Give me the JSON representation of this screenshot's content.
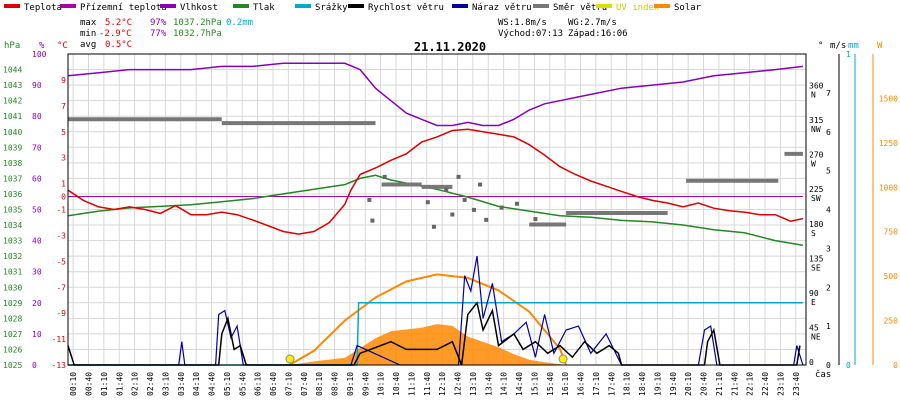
{
  "title": "21.11.2020",
  "legend": [
    {
      "label": "Teplota",
      "color": "#dd0000"
    },
    {
      "label": "Přízemní teplota",
      "color": "#aa00aa"
    },
    {
      "label": "Vlhkost",
      "color": "#8800bb"
    },
    {
      "label": "Tlak",
      "color": "#228822"
    },
    {
      "label": "Srážky",
      "color": "#00aacc"
    },
    {
      "label": "Rychlost větru",
      "color": "#000000"
    },
    {
      "label": "Náraz větru",
      "color": "#0000aa"
    },
    {
      "label": "Směr větru",
      "color": "#777777"
    },
    {
      "label": "UV index",
      "color": "#dddd00"
    },
    {
      "label": "Solar",
      "color": "#ff8800"
    }
  ],
  "stats": {
    "max": {
      "label": "max",
      "temp": "5.2°C",
      "hum": "97%",
      "press": "1037.2hPa",
      "rain": "0.2mm"
    },
    "min": {
      "label": "min",
      "temp": "-2.9°C",
      "hum": "77%",
      "press": "1032.7hPa"
    },
    "avg": {
      "label": "avg",
      "temp": "0.5°C"
    }
  },
  "info": {
    "ws": "WS:1.8m/s",
    "wg": "WG:2.7m/s",
    "sunrise": "Východ:07:13",
    "sunset": "Západ:16:06"
  },
  "axes": {
    "hpa_title": "hPa",
    "pct_title": "%",
    "c_title": "°C",
    "dir_title": "°",
    "ms_title": "m/s",
    "mm_title": "mm",
    "w_title": "W",
    "x_unit": "čas",
    "hpa_ticks": [
      "1044",
      "1043",
      "1042",
      "1041",
      "1040",
      "1039",
      "1038",
      "1037",
      "1036",
      "1035",
      "1034",
      "1033",
      "1032",
      "1031",
      "1030",
      "1029",
      "1028",
      "1027",
      "1026",
      "1025"
    ],
    "pct_ticks": [
      "100",
      "90",
      "80",
      "70",
      "60",
      "50",
      "40",
      "30",
      "20",
      "10",
      "0"
    ],
    "c_ticks": [
      "9",
      "7",
      "5",
      "3",
      "1",
      "-1",
      "-3",
      "-5",
      "-7",
      "-9",
      "-11",
      "-13"
    ],
    "c_mid_tick": "0",
    "dir_ticks": [
      {
        "deg": "360",
        "name": "N"
      },
      {
        "deg": "315",
        "name": "NW"
      },
      {
        "deg": "270",
        "name": "W"
      },
      {
        "deg": "225",
        "name": "SW"
      },
      {
        "deg": "180",
        "name": "S"
      },
      {
        "deg": "135",
        "name": "SE"
      },
      {
        "deg": "90",
        "name": "E"
      },
      {
        "deg": "45",
        "name": "NE"
      },
      {
        "deg": "0",
        "name": ""
      }
    ],
    "ms_ticks": [
      "7",
      "6",
      "5",
      "4",
      "3",
      "2",
      "1",
      "0"
    ],
    "mm_ticks": [
      "1",
      "0"
    ],
    "w_ticks": [
      "1500",
      "1250",
      "1000",
      "750",
      "500",
      "250",
      "0"
    ],
    "time_labels": [
      "00:10",
      "00:40",
      "01:10",
      "01:40",
      "02:10",
      "02:40",
      "03:10",
      "03:40",
      "04:10",
      "04:40",
      "05:10",
      "05:40",
      "06:10",
      "06:40",
      "07:10",
      "07:40",
      "08:10",
      "08:40",
      "09:10",
      "09:40",
      "10:10",
      "10:40",
      "11:10",
      "11:40",
      "12:10",
      "12:40",
      "13:10",
      "13:40",
      "14:10",
      "14:40",
      "15:10",
      "15:40",
      "16:10",
      "16:40",
      "17:10",
      "17:40",
      "18:10",
      "18:40",
      "19:10",
      "19:40",
      "20:10",
      "20:40",
      "21:10",
      "21:40",
      "22:10",
      "22:40",
      "23:10",
      "23:40"
    ]
  },
  "chart_data": {
    "type": "line",
    "x_unit": "hours",
    "series": [
      {
        "name": "Teplota",
        "color": "#dd0000",
        "unit": "°C",
        "points": [
          [
            0,
            0.5
          ],
          [
            0.5,
            -0.3
          ],
          [
            1,
            -0.8
          ],
          [
            1.5,
            -1.0
          ],
          [
            2,
            -0.8
          ],
          [
            2.5,
            -1.0
          ],
          [
            3,
            -1.3
          ],
          [
            3.5,
            -0.7
          ],
          [
            4,
            -1.4
          ],
          [
            4.5,
            -1.4
          ],
          [
            5,
            -1.2
          ],
          [
            5.5,
            -1.4
          ],
          [
            6,
            -1.8
          ],
          [
            7,
            -2.7
          ],
          [
            7.5,
            -2.9
          ],
          [
            8,
            -2.7
          ],
          [
            8.5,
            -2.0
          ],
          [
            9,
            -0.6
          ],
          [
            9.2,
            0.5
          ],
          [
            9.5,
            1.7
          ],
          [
            10,
            2.2
          ],
          [
            10.5,
            2.8
          ],
          [
            11,
            3.3
          ],
          [
            11.5,
            4.2
          ],
          [
            12,
            4.6
          ],
          [
            12.5,
            5.1
          ],
          [
            13,
            5.2
          ],
          [
            13.5,
            5.0
          ],
          [
            14,
            4.8
          ],
          [
            14.5,
            4.6
          ],
          [
            15,
            4.0
          ],
          [
            15.5,
            3.2
          ],
          [
            16,
            2.3
          ],
          [
            16.5,
            1.7
          ],
          [
            17,
            1.2
          ],
          [
            17.5,
            0.8
          ],
          [
            18,
            0.4
          ],
          [
            18.5,
            0.0
          ],
          [
            19,
            -0.3
          ],
          [
            19.5,
            -0.5
          ],
          [
            20,
            -0.8
          ],
          [
            20.5,
            -0.5
          ],
          [
            21,
            -0.9
          ],
          [
            21.5,
            -1.1
          ],
          [
            22,
            -1.2
          ],
          [
            22.5,
            -1.4
          ],
          [
            23,
            -1.4
          ],
          [
            23.5,
            -1.9
          ],
          [
            23.9,
            -1.7
          ]
        ]
      },
      {
        "name": "Vlhkost",
        "color": "#8800bb",
        "unit": "%",
        "points": [
          [
            0,
            93
          ],
          [
            1,
            94
          ],
          [
            2,
            95
          ],
          [
            3,
            95
          ],
          [
            4,
            95
          ],
          [
            5,
            96
          ],
          [
            6,
            96
          ],
          [
            7,
            97
          ],
          [
            8,
            97
          ],
          [
            9,
            97
          ],
          [
            9.5,
            95
          ],
          [
            10,
            89
          ],
          [
            10.5,
            85
          ],
          [
            11,
            81
          ],
          [
            11.5,
            79
          ],
          [
            12,
            77
          ],
          [
            12.5,
            77
          ],
          [
            13,
            78
          ],
          [
            13.5,
            77
          ],
          [
            14,
            77
          ],
          [
            14.5,
            79
          ],
          [
            15,
            82
          ],
          [
            15.5,
            84
          ],
          [
            16,
            85
          ],
          [
            16.5,
            86
          ],
          [
            17,
            87
          ],
          [
            18,
            89
          ],
          [
            19,
            90
          ],
          [
            20,
            91
          ],
          [
            21,
            93
          ],
          [
            22,
            94
          ],
          [
            23,
            95
          ],
          [
            23.9,
            96
          ]
        ]
      },
      {
        "name": "Tlak",
        "color": "#228822",
        "unit": "hPa",
        "points": [
          [
            0,
            1034.6
          ],
          [
            1,
            1034.9
          ],
          [
            2,
            1035.1
          ],
          [
            3,
            1035.2
          ],
          [
            4,
            1035.3
          ],
          [
            5,
            1035.5
          ],
          [
            6,
            1035.7
          ],
          [
            7,
            1036.0
          ],
          [
            8,
            1036.3
          ],
          [
            9,
            1036.6
          ],
          [
            9.5,
            1037.0
          ],
          [
            10,
            1037.2
          ],
          [
            10.5,
            1036.9
          ],
          [
            11,
            1036.7
          ],
          [
            12,
            1036.3
          ],
          [
            13,
            1035.8
          ],
          [
            14,
            1035.2
          ],
          [
            15,
            1034.9
          ],
          [
            16,
            1034.6
          ],
          [
            17,
            1034.5
          ],
          [
            18,
            1034.3
          ],
          [
            19,
            1034.2
          ],
          [
            20,
            1034.0
          ],
          [
            21,
            1033.7
          ],
          [
            22,
            1033.5
          ],
          [
            23,
            1033.0
          ],
          [
            23.9,
            1032.7
          ]
        ]
      },
      {
        "name": "Přízemní teplota",
        "color": "#aa00aa",
        "unit": "°C",
        "points": [
          [
            0,
            0
          ],
          [
            23.9,
            0
          ]
        ]
      },
      {
        "name": "Směr větru",
        "color": "#777777",
        "unit": "°",
        "segments": [
          [
            0,
            5,
            320
          ],
          [
            5,
            10,
            315
          ],
          [
            10.2,
            11.5,
            235
          ],
          [
            11.5,
            12.5,
            232
          ],
          [
            15,
            16.2,
            183
          ],
          [
            16.2,
            19.5,
            198
          ],
          [
            20.1,
            23.1,
            240
          ],
          [
            23.3,
            23.9,
            275
          ]
        ],
        "scatter": [
          [
            9.8,
            215
          ],
          [
            9.9,
            188
          ],
          [
            10.3,
            245
          ],
          [
            11.7,
            212
          ],
          [
            12.3,
            228
          ],
          [
            12.5,
            196
          ],
          [
            12.9,
            215
          ],
          [
            13.2,
            202
          ],
          [
            13.6,
            189
          ],
          [
            14.1,
            205
          ],
          [
            14.6,
            210
          ],
          [
            15.2,
            190
          ],
          [
            11.9,
            180
          ],
          [
            12.7,
            245
          ],
          [
            13.4,
            235
          ]
        ]
      },
      {
        "name": "Rychlost větru",
        "color": "#000000",
        "unit": "m/s",
        "points": [
          [
            0,
            0.5
          ],
          [
            0.2,
            0
          ],
          [
            4.9,
            0
          ],
          [
            5,
            0.8
          ],
          [
            5.2,
            1.2
          ],
          [
            5.4,
            0.4
          ],
          [
            5.6,
            0.5
          ],
          [
            5.8,
            0
          ],
          [
            9.3,
            0
          ],
          [
            9.5,
            0.3
          ],
          [
            10.5,
            0.6
          ],
          [
            11,
            0.4
          ],
          [
            12,
            0.4
          ],
          [
            12.5,
            0.6
          ],
          [
            12.8,
            0
          ],
          [
            13,
            1.3
          ],
          [
            13.3,
            1.6
          ],
          [
            13.5,
            0.9
          ],
          [
            13.8,
            1.4
          ],
          [
            14,
            0.5
          ],
          [
            14.5,
            0.8
          ],
          [
            14.8,
            0.4
          ],
          [
            15.2,
            0.6
          ],
          [
            15.6,
            0.3
          ],
          [
            16,
            0.5
          ],
          [
            16.4,
            0.2
          ],
          [
            16.8,
            0.6
          ],
          [
            17.2,
            0.3
          ],
          [
            17.6,
            0.5
          ],
          [
            17.9,
            0.3
          ],
          [
            18,
            0
          ],
          [
            20.7,
            0
          ],
          [
            20.8,
            0.6
          ],
          [
            21,
            0.9
          ],
          [
            21.2,
            0
          ],
          [
            23.7,
            0
          ],
          [
            23.8,
            0.5
          ]
        ]
      },
      {
        "name": "Náraz větru",
        "color": "#0000aa",
        "unit": "m/s",
        "points": [
          [
            0,
            0
          ],
          [
            3.6,
            0
          ],
          [
            3.7,
            0.6
          ],
          [
            3.8,
            0
          ],
          [
            4.8,
            0
          ],
          [
            4.9,
            1.3
          ],
          [
            5.1,
            1.4
          ],
          [
            5.3,
            0.7
          ],
          [
            5.5,
            1.0
          ],
          [
            5.7,
            0
          ],
          [
            9.2,
            0
          ],
          [
            9.4,
            0.5
          ],
          [
            10.8,
            0
          ],
          [
            12.7,
            0
          ],
          [
            12.9,
            2.3
          ],
          [
            13.1,
            1.9
          ],
          [
            13.3,
            2.8
          ],
          [
            13.5,
            1.2
          ],
          [
            13.8,
            2.1
          ],
          [
            14.1,
            0.6
          ],
          [
            14.5,
            0.8
          ],
          [
            14.9,
            1.1
          ],
          [
            15.2,
            0.2
          ],
          [
            15.5,
            1.3
          ],
          [
            15.8,
            0.3
          ],
          [
            16.2,
            0.9
          ],
          [
            16.6,
            1.0
          ],
          [
            17,
            0.3
          ],
          [
            17.5,
            0.8
          ],
          [
            18,
            0
          ],
          [
            20.5,
            0
          ],
          [
            20.7,
            0.9
          ],
          [
            20.9,
            1.0
          ],
          [
            21.1,
            0
          ],
          [
            23.6,
            0
          ],
          [
            23.7,
            0.5
          ],
          [
            23.9,
            0
          ]
        ]
      },
      {
        "name": "Srážky",
        "color": "#00aacc",
        "unit": "mm",
        "points": [
          [
            0,
            0
          ],
          [
            9.4,
            0
          ],
          [
            9.45,
            0.2
          ],
          [
            23.9,
            0.2
          ]
        ]
      },
      {
        "name": "Solar",
        "color": "#ff8800",
        "unit": "W",
        "curve": [
          [
            7.2,
            0
          ],
          [
            8,
            80
          ],
          [
            9,
            250
          ],
          [
            10,
            380
          ],
          [
            11,
            470
          ],
          [
            12,
            510
          ],
          [
            13,
            490
          ],
          [
            14,
            420
          ],
          [
            15,
            300
          ],
          [
            16,
            90
          ],
          [
            16.2,
            0
          ]
        ],
        "area": [
          [
            7.2,
            0
          ],
          [
            8,
            20
          ],
          [
            9,
            40
          ],
          [
            10,
            150
          ],
          [
            10.5,
            190
          ],
          [
            11,
            200
          ],
          [
            11.5,
            210
          ],
          [
            12,
            230
          ],
          [
            12.5,
            220
          ],
          [
            13,
            160
          ],
          [
            13.5,
            130
          ],
          [
            14,
            100
          ],
          [
            14.5,
            60
          ],
          [
            15,
            30
          ],
          [
            15.5,
            15
          ],
          [
            16.2,
            0
          ]
        ]
      }
    ],
    "markers": [
      {
        "name": "Východ",
        "x": 7.22
      },
      {
        "name": "Západ",
        "x": 16.1
      }
    ],
    "y_ranges": {
      "temp_c": [
        -13,
        11
      ],
      "humidity_pct": [
        0,
        100
      ],
      "pressure_hpa": [
        1025,
        1045
      ],
      "direction_deg": [
        0,
        405
      ],
      "wind_ms": [
        0,
        8
      ],
      "rain_mm": [
        0,
        1
      ],
      "solar_w": [
        0,
        1750
      ]
    },
    "x_range": [
      0,
      24
    ],
    "grid": true
  }
}
